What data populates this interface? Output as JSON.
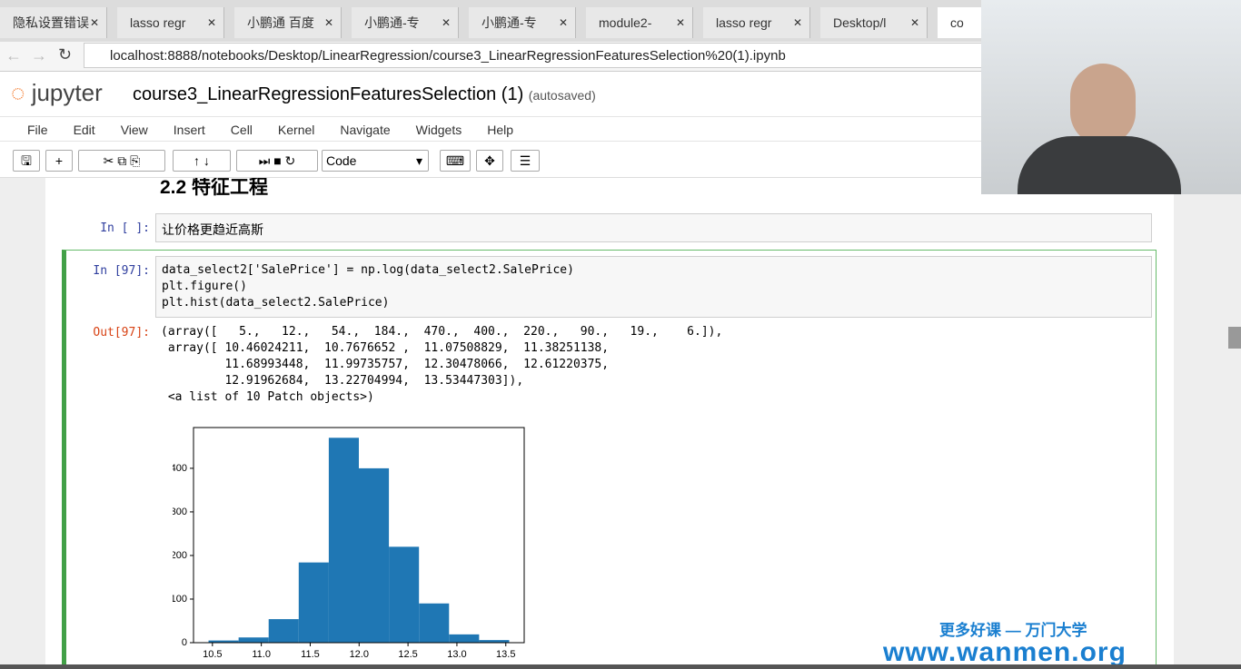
{
  "browser": {
    "tabs": [
      "隐私设置错误",
      "lasso regr",
      "小鹏通 百度",
      "小鹏通-专",
      "小鹏通-专",
      "module2-",
      "lasso regr",
      "Desktop/l",
      "co"
    ],
    "url": "localhost:8888/notebooks/Desktop/LinearRegression/course3_LinearRegressionFeaturesSelection%20(1).ipynb"
  },
  "header": {
    "logo": "jupyter",
    "title": "course3_LinearRegressionFeaturesSelection (1)",
    "status": "(autosaved)"
  },
  "menu": [
    "File",
    "Edit",
    "View",
    "Insert",
    "Cell",
    "Kernel",
    "Navigate",
    "Widgets",
    "Help"
  ],
  "toolbar": {
    "cell_type": "Code"
  },
  "cells": [
    {
      "heading": "2.2 特征工程"
    },
    {
      "prompt": "In [ ]:",
      "source": [
        "让价格更趋近高斯"
      ]
    },
    {
      "prompt": "In [97]:",
      "source": [
        "data_select2['SalePrice'] = np.log(data_select2.SalePrice)",
        "plt.figure()",
        "plt.hist(data_select2.SalePrice)"
      ],
      "out_prompt": "Out[97]:",
      "output": [
        "(array([   5.,   12.,   54.,  184.,  470.,  400.,  220.,   90.,   19.,    6.]),",
        " array([ 10.46024211,  10.7676652 ,  11.07508829,  11.38251138,",
        "         11.68993448,  11.99735757,  12.30478066,  12.61220375,",
        "         12.91962684,  13.22704994,  13.53447303]),",
        " <a list of 10 Patch objects>)"
      ]
    }
  ],
  "watermark": {
    "line1": "更多好课 — 万门大学",
    "line2": "www.wanmen.org"
  },
  "chart_data": {
    "type": "histogram",
    "color": "#1f77b4",
    "bins": [
      10.46024211,
      10.7676652,
      11.07508829,
      11.38251138,
      11.68993448,
      11.99735757,
      12.30478066,
      12.61220375,
      12.91962684,
      13.22704994,
      13.53447303
    ],
    "counts": [
      5,
      12,
      54,
      184,
      470,
      400,
      220,
      90,
      19,
      6
    ],
    "xlim": [
      10.3066,
      13.6881
    ],
    "ylim": [
      0,
      493.5
    ],
    "xticks": [
      10.5,
      {
        "value": 11,
        "label": "11.0"
      },
      11.5,
      {
        "value": 12,
        "label": "12.0"
      },
      12.5,
      {
        "value": 13,
        "label": "13.0"
      },
      13.5
    ],
    "yticks": [
      0,
      100,
      200,
      300,
      400
    ]
  }
}
